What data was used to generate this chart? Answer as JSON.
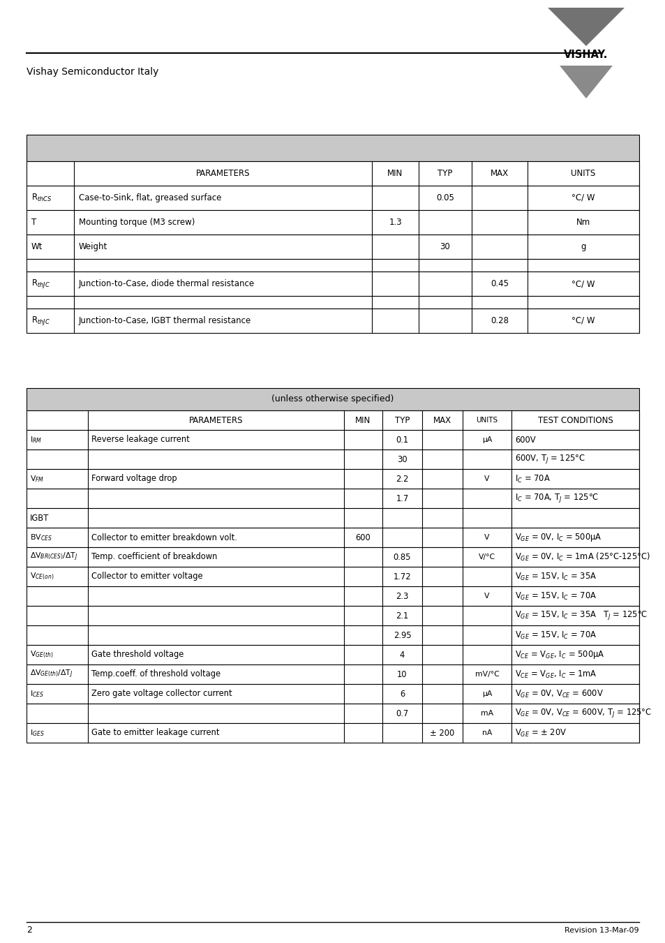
{
  "page_number": "2",
  "revision": "Revision 13-Mar-09",
  "header_text": "Vishay Semiconductor Italy",
  "table1_title": "",
  "table1_header": [
    "PARAMETERS",
    "MIN",
    "TYP",
    "MAX",
    "UNITS"
  ],
  "table2_title": "(unless otherwise specified)",
  "table2_header": [
    "PARAMETERS",
    "MIN",
    "TYP",
    "MAX",
    "UNITS",
    "TEST CONDITIONS"
  ],
  "bg_color": "#ffffff",
  "header_gray": "#c8c8c8",
  "border_color": "#000000"
}
